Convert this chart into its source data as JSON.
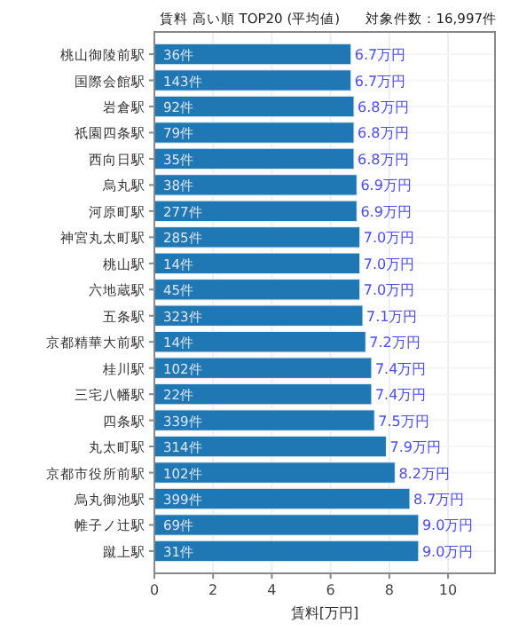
{
  "chart_data": {
    "type": "bar",
    "orientation": "horizontal",
    "title": "賃料 高い順 TOP20 (平均値)",
    "subtitle": "対象件数：16,997件",
    "xlabel": "賃料[万円]",
    "categories": [
      "桃山御陵前駅",
      "国際会館駅",
      "岩倉駅",
      "祇園四条駅",
      "西向日駅",
      "烏丸駅",
      "河原町駅",
      "神宮丸太町駅",
      "桃山駅",
      "六地蔵駅",
      "五条駅",
      "京都精華大前駅",
      "桂川駅",
      "三宅八幡駅",
      "四条駅",
      "丸太町駅",
      "京都市役所前駅",
      "烏丸御池駅",
      "帷子ノ辻駅",
      "蹴上駅"
    ],
    "values": [
      6.7,
      6.7,
      6.8,
      6.8,
      6.8,
      6.9,
      6.9,
      7.0,
      7.0,
      7.0,
      7.1,
      7.2,
      7.4,
      7.4,
      7.5,
      7.9,
      8.2,
      8.7,
      9.0,
      9.0
    ],
    "value_labels": [
      "6.7万円",
      "6.7万円",
      "6.8万円",
      "6.8万円",
      "6.8万円",
      "6.9万円",
      "6.9万円",
      "7.0万円",
      "7.0万円",
      "7.0万円",
      "7.1万円",
      "7.2万円",
      "7.4万円",
      "7.4万円",
      "7.5万円",
      "7.9万円",
      "8.2万円",
      "8.7万円",
      "9.0万円",
      "9.0万円"
    ],
    "annotations": [
      {
        "text": "36件",
        "y": "桃山御陵前駅"
      },
      {
        "text": "143件",
        "y": "国際会館駅"
      },
      {
        "text": "92件",
        "y": "岩倉駅"
      },
      {
        "text": "79件",
        "y": "祇園四条駅"
      },
      {
        "text": "35件",
        "y": "西向日駅"
      },
      {
        "text": "38件",
        "y": "烏丸駅"
      },
      {
        "text": "277件",
        "y": "河原町駅"
      },
      {
        "text": "285件",
        "y": "神宮丸太町駅"
      },
      {
        "text": "14件",
        "y": "桃山駅"
      },
      {
        "text": "45件",
        "y": "六地蔵駅"
      },
      {
        "text": "323件",
        "y": "五条駅"
      },
      {
        "text": "14件",
        "y": "京都精華大前駅"
      },
      {
        "text": "102件",
        "y": "桂川駅"
      },
      {
        "text": "22件",
        "y": "三宅八幡駅"
      },
      {
        "text": "339件",
        "y": "四条駅"
      },
      {
        "text": "314件",
        "y": "丸太町駅"
      },
      {
        "text": "102件",
        "y": "京都市役所前駅"
      },
      {
        "text": "399件",
        "y": "烏丸御池駅"
      },
      {
        "text": "69件",
        "y": "帷子ノ辻駅"
      },
      {
        "text": "31件",
        "y": "蹴上駅"
      }
    ],
    "color": "#1f77b4",
    "xlim": [
      0,
      11.6
    ],
    "xticks": [
      0,
      2,
      4,
      6,
      8,
      10
    ],
    "grid": true
  }
}
